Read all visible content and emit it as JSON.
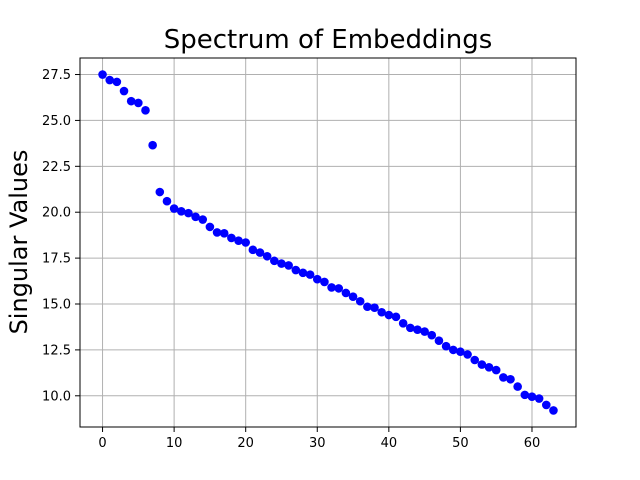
{
  "chart_data": {
    "type": "scatter",
    "title": "Spectrum of Embeddings",
    "xlabel": "",
    "ylabel": "Singular Values",
    "xlim": [
      -3.15,
      66.15
    ],
    "ylim": [
      8.3,
      28.4
    ],
    "xticks": [
      0,
      10,
      20,
      30,
      40,
      50,
      60
    ],
    "yticks": [
      10.0,
      12.5,
      15.0,
      17.5,
      20.0,
      22.5,
      25.0,
      27.5
    ],
    "grid": true,
    "marker_color": "#0000ff",
    "x": [
      0,
      1,
      2,
      3,
      4,
      5,
      6,
      7,
      8,
      9,
      10,
      11,
      12,
      13,
      14,
      15,
      16,
      17,
      18,
      19,
      20,
      21,
      22,
      23,
      24,
      25,
      26,
      27,
      28,
      29,
      30,
      31,
      32,
      33,
      34,
      35,
      36,
      37,
      38,
      39,
      40,
      41,
      42,
      43,
      44,
      45,
      46,
      47,
      48,
      49,
      50,
      51,
      52,
      53,
      54,
      55,
      56,
      57,
      58,
      59,
      60,
      61,
      62,
      63
    ],
    "y": [
      27.5,
      27.2,
      27.1,
      26.6,
      26.05,
      25.95,
      25.55,
      23.65,
      21.1,
      20.6,
      20.2,
      20.05,
      19.95,
      19.75,
      19.6,
      19.2,
      18.9,
      18.85,
      18.6,
      18.45,
      18.35,
      17.95,
      17.8,
      17.6,
      17.35,
      17.2,
      17.1,
      16.85,
      16.7,
      16.6,
      16.35,
      16.2,
      15.9,
      15.85,
      15.6,
      15.4,
      15.15,
      14.85,
      14.8,
      14.55,
      14.4,
      14.3,
      13.95,
      13.7,
      13.6,
      13.5,
      13.3,
      13.0,
      12.7,
      12.5,
      12.4,
      12.25,
      11.95,
      11.7,
      11.55,
      11.4,
      11.0,
      10.9,
      10.5,
      10.05,
      9.95,
      9.85,
      9.5,
      9.2
    ]
  }
}
